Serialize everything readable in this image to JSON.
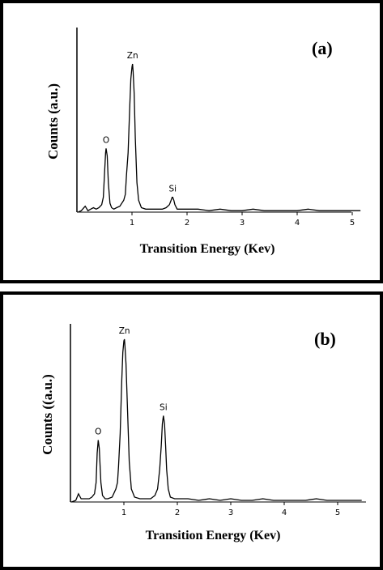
{
  "chart_data": [
    {
      "type": "line",
      "panel_label": "(a)",
      "xlabel": "Transition Energy (Kev)",
      "ylabel": "Counts (a.u.)",
      "xlim": [
        0,
        5.2
      ],
      "ylim": [
        0,
        1.05
      ],
      "x_ticks": [
        1,
        2,
        3,
        4,
        5
      ],
      "grid": false,
      "peaks": [
        {
          "element": "O",
          "x": 0.53,
          "y": 0.43
        },
        {
          "element": "Zn",
          "x": 1.01,
          "y": 1.0
        },
        {
          "element": "Si",
          "x": 1.74,
          "y": 0.1
        }
      ],
      "series": [
        {
          "x": [
            0.02,
            0.08,
            0.15,
            0.2,
            0.25,
            0.3,
            0.35,
            0.4,
            0.45,
            0.48,
            0.5,
            0.52,
            0.53,
            0.55,
            0.57,
            0.6,
            0.63,
            0.67,
            0.72,
            0.78,
            0.85,
            0.88,
            0.9,
            0.93,
            0.96,
            0.98,
            1.0,
            1.01,
            1.02,
            1.04,
            1.06,
            1.09,
            1.12,
            1.17,
            1.25,
            1.35,
            1.45,
            1.55,
            1.62,
            1.68,
            1.71,
            1.73,
            1.74,
            1.76,
            1.78,
            1.82,
            1.9,
            2.0,
            2.2,
            2.4,
            2.6,
            2.8,
            3.0,
            3.2,
            3.4,
            3.6,
            3.8,
            4.0,
            4.2,
            4.4,
            4.6,
            4.8,
            5.0,
            5.15
          ],
          "y": [
            0.0,
            0.01,
            0.04,
            0.01,
            0.02,
            0.03,
            0.02,
            0.03,
            0.05,
            0.1,
            0.25,
            0.4,
            0.43,
            0.38,
            0.2,
            0.06,
            0.03,
            0.02,
            0.03,
            0.04,
            0.08,
            0.12,
            0.25,
            0.4,
            0.72,
            0.9,
            0.98,
            1.0,
            0.95,
            0.8,
            0.5,
            0.2,
            0.08,
            0.03,
            0.02,
            0.02,
            0.02,
            0.02,
            0.03,
            0.05,
            0.08,
            0.1,
            0.1,
            0.08,
            0.05,
            0.02,
            0.02,
            0.02,
            0.02,
            0.01,
            0.02,
            0.01,
            0.01,
            0.02,
            0.01,
            0.01,
            0.01,
            0.01,
            0.02,
            0.01,
            0.01,
            0.01,
            0.01,
            0.01
          ]
        }
      ]
    },
    {
      "type": "line",
      "panel_label": "(b)",
      "xlabel": "Transition Energy (Kev)",
      "ylabel": "Counts ((a.u.)",
      "xlim": [
        0,
        5.5
      ],
      "ylim": [
        0,
        1.05
      ],
      "x_ticks": [
        1,
        2,
        3,
        4,
        5
      ],
      "grid": false,
      "peaks": [
        {
          "element": "O",
          "x": 0.52,
          "y": 0.38
        },
        {
          "element": "Zn",
          "x": 1.01,
          "y": 1.0
        },
        {
          "element": "Si",
          "x": 1.74,
          "y": 0.53
        }
      ],
      "series": [
        {
          "x": [
            0.02,
            0.1,
            0.15,
            0.2,
            0.25,
            0.3,
            0.35,
            0.4,
            0.45,
            0.48,
            0.5,
            0.52,
            0.54,
            0.57,
            0.6,
            0.65,
            0.7,
            0.78,
            0.85,
            0.88,
            0.9,
            0.93,
            0.96,
            0.98,
            1.0,
            1.01,
            1.02,
            1.04,
            1.07,
            1.1,
            1.14,
            1.2,
            1.3,
            1.4,
            1.5,
            1.58,
            1.63,
            1.67,
            1.7,
            1.72,
            1.74,
            1.76,
            1.78,
            1.8,
            1.83,
            1.87,
            1.95,
            2.05,
            2.2,
            2.4,
            2.6,
            2.8,
            3.0,
            3.2,
            3.4,
            3.6,
            3.8,
            4.0,
            4.2,
            4.4,
            4.6,
            4.8,
            5.0,
            5.2,
            5.45
          ],
          "y": [
            0.0,
            0.01,
            0.05,
            0.02,
            0.02,
            0.02,
            0.02,
            0.03,
            0.05,
            0.12,
            0.3,
            0.38,
            0.33,
            0.12,
            0.04,
            0.02,
            0.02,
            0.03,
            0.08,
            0.12,
            0.22,
            0.42,
            0.75,
            0.92,
            0.99,
            1.0,
            0.96,
            0.85,
            0.55,
            0.25,
            0.08,
            0.03,
            0.02,
            0.02,
            0.02,
            0.04,
            0.08,
            0.2,
            0.35,
            0.48,
            0.53,
            0.48,
            0.35,
            0.2,
            0.08,
            0.03,
            0.02,
            0.02,
            0.02,
            0.01,
            0.02,
            0.01,
            0.02,
            0.01,
            0.01,
            0.02,
            0.01,
            0.01,
            0.01,
            0.01,
            0.02,
            0.01,
            0.01,
            0.01,
            0.01
          ]
        }
      ]
    }
  ]
}
